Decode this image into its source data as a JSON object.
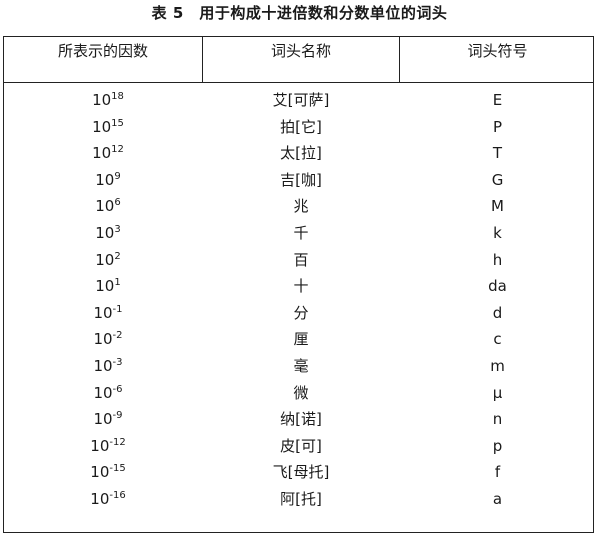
{
  "caption": "表 5　用于构成十进倍数和分数单位的词头",
  "headers": {
    "factor": "所表示的因数",
    "name": "词头名称",
    "symbol": "词头符号"
  },
  "rows": [
    {
      "base": "10",
      "exp": "18",
      "name": "艾[可萨]",
      "symbol": "E"
    },
    {
      "base": "10",
      "exp": "15",
      "name": "拍[它]",
      "symbol": "P"
    },
    {
      "base": "10",
      "exp": "12",
      "name": "太[拉]",
      "symbol": "T"
    },
    {
      "base": "10",
      "exp": "9",
      "name": "吉[咖]",
      "symbol": "G"
    },
    {
      "base": "10",
      "exp": "6",
      "name": "兆",
      "symbol": "M"
    },
    {
      "base": "10",
      "exp": "3",
      "name": "千",
      "symbol": "k"
    },
    {
      "base": "10",
      "exp": "2",
      "name": "百",
      "symbol": "h"
    },
    {
      "base": "10",
      "exp": "1",
      "name": "十",
      "symbol": "da"
    },
    {
      "base": "10",
      "exp": "-1",
      "name": "分",
      "symbol": "d"
    },
    {
      "base": "10",
      "exp": "-2",
      "name": "厘",
      "symbol": "c"
    },
    {
      "base": "10",
      "exp": "-3",
      "name": "毫",
      "symbol": "m"
    },
    {
      "base": "10",
      "exp": "-6",
      "name": "微",
      "symbol": "μ"
    },
    {
      "base": "10",
      "exp": "-9",
      "name": "纳[诺]",
      "symbol": "n"
    },
    {
      "base": "10",
      "exp": "-12",
      "name": "皮[可]",
      "symbol": "p"
    },
    {
      "base": "10",
      "exp": "-15",
      "name": "飞[母托]",
      "symbol": "f"
    },
    {
      "base": "10",
      "exp": "-16",
      "name": "阿[托]",
      "symbol": "a"
    }
  ]
}
